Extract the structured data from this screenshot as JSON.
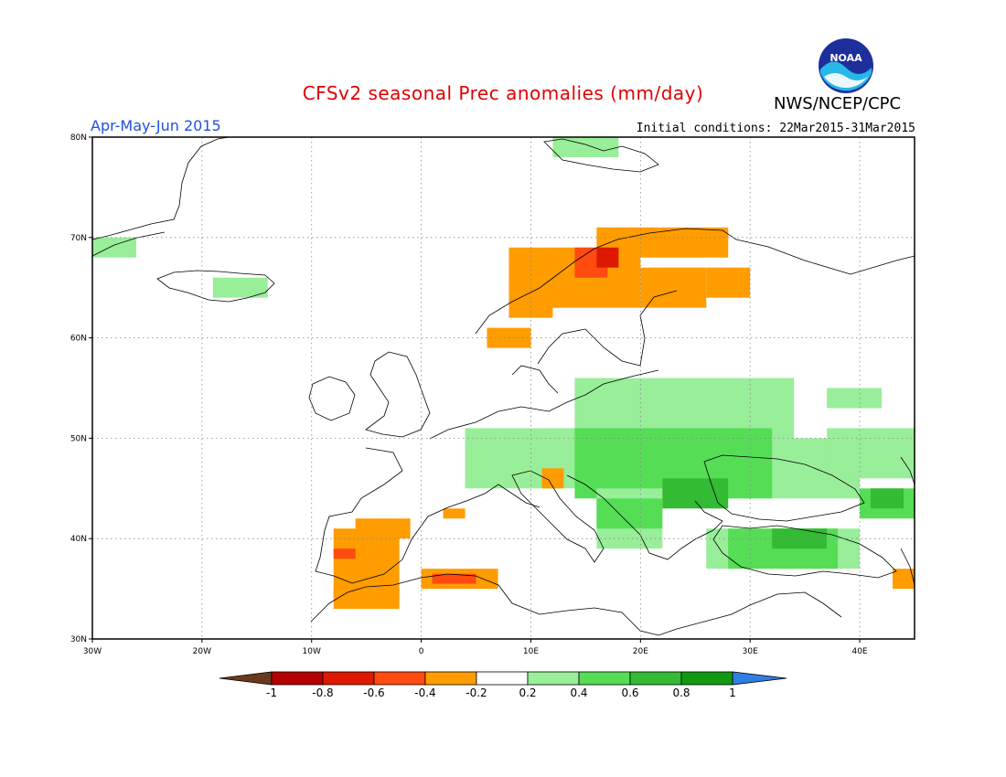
{
  "title": "CFSv2 seasonal Prec anomalies (mm/day)",
  "period": "Apr-May-Jun 2015",
  "initial_conditions": "Initial conditions: 22Mar2015-31Mar2015",
  "agency": "NWS/NCEP/CPC",
  "logo_text": "NOAA",
  "map": {
    "lon_range": [
      -30,
      45
    ],
    "lat_range": [
      30,
      80
    ],
    "lat_ticks": [
      "30N",
      "40N",
      "50N",
      "60N",
      "70N",
      "80N"
    ],
    "lon_ticks": [
      "30W",
      "20W",
      "10W",
      "0",
      "10E",
      "20E",
      "30E",
      "40E"
    ],
    "grid": "dotted"
  },
  "colorbar": {
    "labels": [
      "-1",
      "-0.8",
      "-0.6",
      "-0.4",
      "-0.2",
      "0.2",
      "0.4",
      "0.6",
      "0.8",
      "1"
    ],
    "colors": {
      "below_min": "#6b3a1e",
      "n1": "#b40000",
      "n08": "#dd1a00",
      "n06": "#ff4a10",
      "n04": "#ff9c00",
      "zero": "#ffffff",
      "p02": "#99ee99",
      "p04": "#55dd55",
      "p06": "#33bb33",
      "p08": "#119911",
      "above_max": "#2f7fe0"
    }
  },
  "anomaly_regions": [
    {
      "level": "p02",
      "lon": [
        -30,
        -26
      ],
      "lat": [
        68,
        70
      ]
    },
    {
      "level": "p02",
      "lon": [
        -19,
        -14
      ],
      "lat": [
        64,
        66
      ]
    },
    {
      "level": "p02",
      "lon": [
        12,
        18
      ],
      "lat": [
        78,
        80
      ]
    },
    {
      "level": "n04",
      "lon": [
        8,
        20
      ],
      "lat": [
        63,
        69
      ]
    },
    {
      "level": "n04",
      "lon": [
        16,
        28
      ],
      "lat": [
        68,
        71
      ]
    },
    {
      "level": "n04",
      "lon": [
        20,
        26
      ],
      "lat": [
        63,
        67
      ]
    },
    {
      "level": "n04",
      "lon": [
        26,
        30
      ],
      "lat": [
        64,
        67
      ]
    },
    {
      "level": "n06",
      "lon": [
        14,
        17
      ],
      "lat": [
        66,
        69
      ]
    },
    {
      "level": "n08",
      "lon": [
        16,
        18
      ],
      "lat": [
        67,
        69
      ]
    },
    {
      "level": "n04",
      "lon": [
        8,
        12
      ],
      "lat": [
        62,
        64
      ]
    },
    {
      "level": "n04",
      "lon": [
        6,
        10
      ],
      "lat": [
        59,
        61
      ]
    },
    {
      "level": "p02",
      "lon": [
        4,
        32
      ],
      "lat": [
        45,
        51
      ]
    },
    {
      "level": "p02",
      "lon": [
        14,
        34
      ],
      "lat": [
        50,
        56
      ]
    },
    {
      "level": "p02",
      "lon": [
        22,
        40
      ],
      "lat": [
        44,
        50
      ]
    },
    {
      "level": "p04",
      "lon": [
        14,
        32
      ],
      "lat": [
        44,
        51
      ]
    },
    {
      "level": "p06",
      "lon": [
        22,
        28
      ],
      "lat": [
        43,
        46
      ]
    },
    {
      "level": "p02",
      "lon": [
        37,
        45
      ],
      "lat": [
        46,
        51
      ]
    },
    {
      "level": "p02",
      "lon": [
        37,
        42
      ],
      "lat": [
        53,
        55
      ]
    },
    {
      "level": "p04",
      "lon": [
        40,
        45
      ],
      "lat": [
        42,
        45
      ]
    },
    {
      "level": "p06",
      "lon": [
        41,
        44
      ],
      "lat": [
        43,
        45
      ]
    },
    {
      "level": "p02",
      "lon": [
        26,
        40
      ],
      "lat": [
        37,
        41
      ]
    },
    {
      "level": "p04",
      "lon": [
        28,
        38
      ],
      "lat": [
        37,
        41
      ]
    },
    {
      "level": "p06",
      "lon": [
        32,
        37
      ],
      "lat": [
        39,
        41
      ]
    },
    {
      "level": "p02",
      "lon": [
        16,
        22
      ],
      "lat": [
        39,
        45
      ]
    },
    {
      "level": "p04",
      "lon": [
        16,
        22
      ],
      "lat": [
        41,
        44
      ]
    },
    {
      "level": "n04",
      "lon": [
        -8,
        -2
      ],
      "lat": [
        34,
        41
      ]
    },
    {
      "level": "n04",
      "lon": [
        -6,
        -1
      ],
      "lat": [
        40,
        42
      ]
    },
    {
      "level": "n06",
      "lon": [
        -8,
        -6
      ],
      "lat": [
        38,
        39
      ]
    },
    {
      "level": "n04",
      "lon": [
        0,
        7
      ],
      "lat": [
        35,
        37
      ]
    },
    {
      "level": "n06",
      "lon": [
        1,
        5
      ],
      "lat": [
        35.5,
        36.5
      ]
    },
    {
      "level": "n04",
      "lon": [
        -8,
        -2
      ],
      "lat": [
        33,
        35
      ]
    },
    {
      "level": "n04",
      "lon": [
        43,
        45
      ],
      "lat": [
        35,
        37
      ]
    },
    {
      "level": "n04",
      "lon": [
        11,
        13
      ],
      "lat": [
        45,
        47
      ]
    },
    {
      "level": "n04",
      "lon": [
        2,
        4
      ],
      "lat": [
        42,
        43
      ]
    }
  ]
}
